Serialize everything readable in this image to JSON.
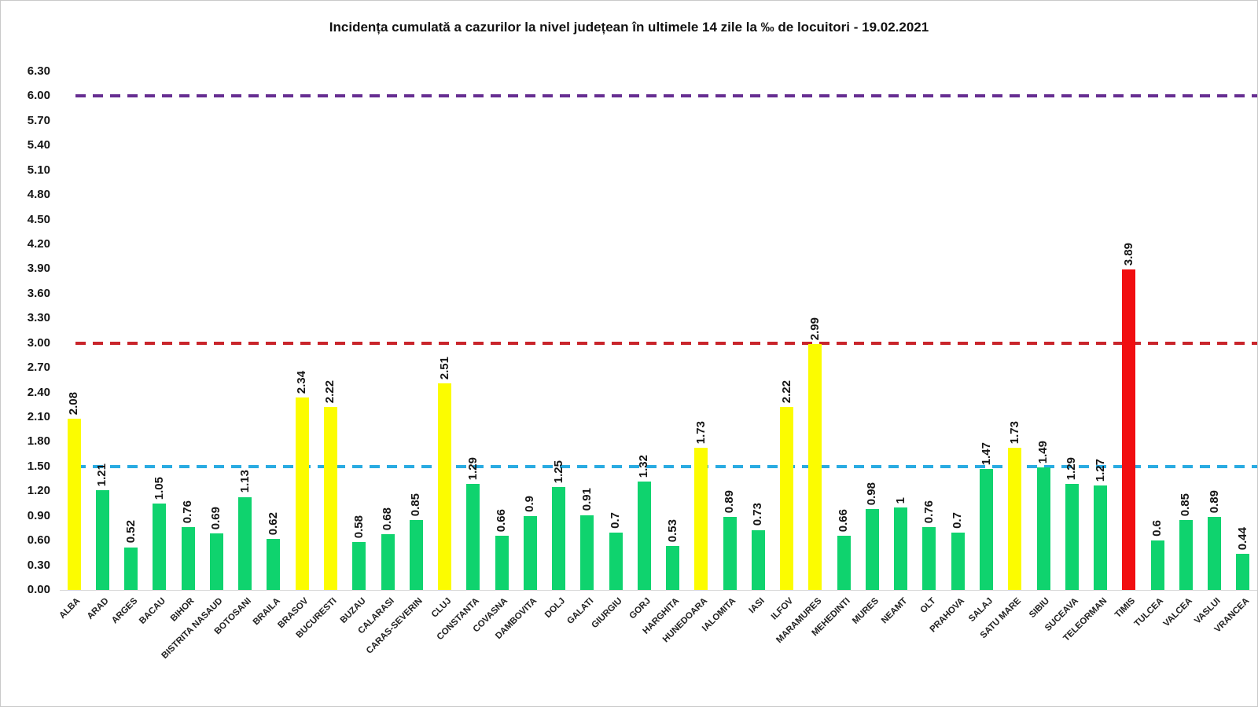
{
  "title": "Incidența cumulată a cazurilor la nivel județean în ultimele 14 zile la ‰ de locuitori - 19.02.2021",
  "colors": {
    "bar_green": "#0fd36e",
    "bar_yellow": "#fcfc00",
    "bar_red": "#f10e10",
    "threshold_blue": "#29abe2",
    "threshold_red": "#c9252b",
    "threshold_purple": "#662d91",
    "axis_line": "#d9d9d9",
    "text": "#151515"
  },
  "chart_data": {
    "type": "bar",
    "title": "Incidența cumulată a cazurilor la nivel județean în ultimele 14 zile la ‰ de locuitori - 19.02.2021",
    "xlabel": "",
    "ylabel": "",
    "ylim": [
      0,
      6.3
    ],
    "ytick_step": 0.3,
    "yticks": [
      "0.00",
      "0.30",
      "0.60",
      "0.90",
      "1.20",
      "1.50",
      "1.80",
      "2.10",
      "2.40",
      "2.70",
      "3.00",
      "3.30",
      "3.60",
      "3.90",
      "4.20",
      "4.50",
      "4.80",
      "5.10",
      "5.40",
      "5.70",
      "6.00",
      "6.30"
    ],
    "grid": false,
    "legend": "none",
    "value_label_rotation": -90,
    "category_label_rotation": -45,
    "categories": [
      "ALBA",
      "ARAD",
      "ARGES",
      "BACAU",
      "BIHOR",
      "BISTRITA NASAUD",
      "BOTOSANI",
      "BRAILA",
      "BRASOV",
      "BUCURESTI",
      "BUZAU",
      "CALARASI",
      "CARAS-SEVERIN",
      "CLUJ",
      "CONSTANTA",
      "COVASNA",
      "DAMBOVITA",
      "DOLJ",
      "GALATI",
      "GIURGIU",
      "GORJ",
      "HARGHITA",
      "HUNEDOARA",
      "IALOMITA",
      "IASI",
      "ILFOV",
      "MARAMURES",
      "MEHEDINTI",
      "MURES",
      "NEAMT",
      "OLT",
      "PRAHOVA",
      "SALAJ",
      "SATU MARE",
      "SIBIU",
      "SUCEAVA",
      "TELEORMAN",
      "TIMIS",
      "TULCEA",
      "VALCEA",
      "VASLUI",
      "VRANCEA"
    ],
    "values": [
      2.08,
      1.21,
      0.52,
      1.05,
      0.76,
      0.69,
      1.13,
      0.62,
      2.34,
      2.22,
      0.58,
      0.68,
      0.85,
      2.51,
      1.29,
      0.66,
      0.9,
      1.25,
      0.91,
      0.7,
      1.32,
      0.53,
      1.73,
      0.89,
      0.73,
      2.22,
      2.99,
      0.66,
      0.98,
      1,
      0.76,
      0.7,
      1.47,
      1.73,
      1.49,
      1.29,
      1.27,
      3.89,
      0.6,
      0.85,
      0.89,
      0.44
    ],
    "value_labels": [
      "2.08",
      "1.21",
      "0.52",
      "1.05",
      "0.76",
      "0.69",
      "1.13",
      "0.62",
      "2.34",
      "2.22",
      "0.58",
      "0.68",
      "0.85",
      "2.51",
      "1.29",
      "0.66",
      "0.9",
      "1.25",
      "0.91",
      "0.7",
      "1.32",
      "0.53",
      "1.73",
      "0.89",
      "0.73",
      "2.22",
      "2.99",
      "0.66",
      "0.98",
      "1",
      "0.76",
      "0.7",
      "1.47",
      "1.73",
      "1.49",
      "1.29",
      "1.27",
      "3.89",
      "0.6",
      "0.85",
      "0.89",
      "0.44"
    ],
    "bar_color_keys": [
      "bar_yellow",
      "bar_green",
      "bar_green",
      "bar_green",
      "bar_green",
      "bar_green",
      "bar_green",
      "bar_green",
      "bar_yellow",
      "bar_yellow",
      "bar_green",
      "bar_green",
      "bar_green",
      "bar_yellow",
      "bar_green",
      "bar_green",
      "bar_green",
      "bar_green",
      "bar_green",
      "bar_green",
      "bar_green",
      "bar_green",
      "bar_yellow",
      "bar_green",
      "bar_green",
      "bar_yellow",
      "bar_yellow",
      "bar_green",
      "bar_green",
      "bar_green",
      "bar_green",
      "bar_green",
      "bar_green",
      "bar_yellow",
      "bar_green",
      "bar_green",
      "bar_green",
      "bar_red",
      "bar_green",
      "bar_green",
      "bar_green",
      "bar_green"
    ],
    "thresholds": [
      {
        "value": 1.5,
        "color_key": "threshold_blue"
      },
      {
        "value": 3.0,
        "color_key": "threshold_red"
      },
      {
        "value": 6.0,
        "color_key": "threshold_purple"
      }
    ]
  }
}
